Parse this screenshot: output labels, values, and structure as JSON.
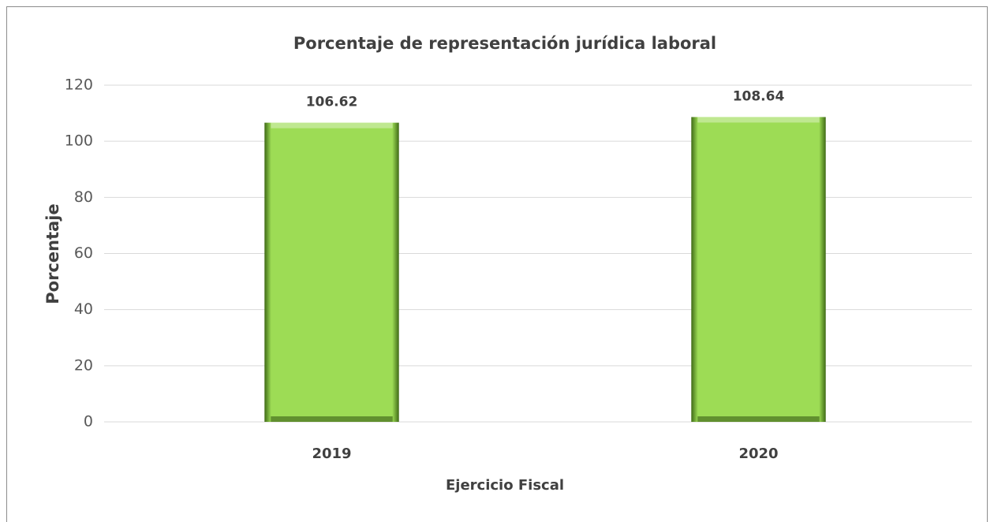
{
  "chart_data": {
    "type": "bar",
    "title": "Porcentaje de representación jurídica laboral",
    "x_label": "Ejercicio Fiscal",
    "y_label": "Porcentaje",
    "categories": [
      "2019",
      "2020"
    ],
    "values": [
      106.62,
      108.64
    ],
    "color": "#9ddc55",
    "ylim": [
      0,
      120
    ],
    "yticks": [
      0,
      20,
      40,
      60,
      80,
      100,
      120
    ],
    "grid": true,
    "data_labels": true
  }
}
